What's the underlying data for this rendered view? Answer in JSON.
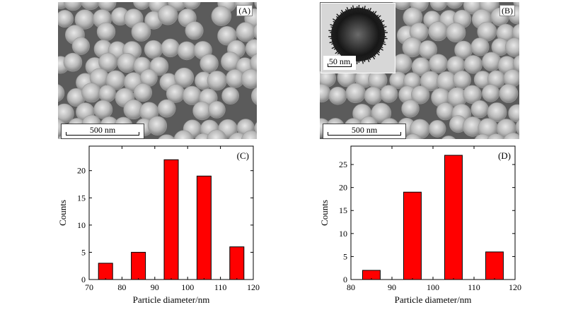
{
  "panels": {
    "a": {
      "tag": "(A)",
      "scale_label": "500 nm"
    },
    "b": {
      "tag": "(B)",
      "scale_label": "500 nm",
      "inset_scale_label": "50 nm"
    }
  },
  "chart_data": [
    {
      "type": "bar",
      "panel_tag": "(C)",
      "categories": [
        75,
        85,
        95,
        105,
        115
      ],
      "values": [
        3,
        5,
        22,
        19,
        6
      ],
      "xlabel": "Particle diameter/nm",
      "ylabel": "Counts",
      "xlim": [
        70,
        120
      ],
      "ylim": [
        0,
        24.5
      ],
      "xticks": [
        70,
        80,
        90,
        100,
        110,
        120
      ],
      "yticks": [
        0,
        5,
        10,
        15,
        20
      ],
      "bar_color": "#ff0000",
      "grid": false
    },
    {
      "type": "bar",
      "panel_tag": "(D)",
      "categories": [
        85,
        95,
        105,
        115
      ],
      "values": [
        2,
        19,
        27,
        6
      ],
      "xlabel": "Particle diameter/nm",
      "ylabel": "Counts",
      "xlim": [
        80,
        120
      ],
      "ylim": [
        0,
        29
      ],
      "xticks": [
        80,
        90,
        100,
        110,
        120
      ],
      "yticks": [
        0,
        5,
        10,
        15,
        20,
        25
      ],
      "bar_color": "#ff0000",
      "grid": false
    }
  ]
}
